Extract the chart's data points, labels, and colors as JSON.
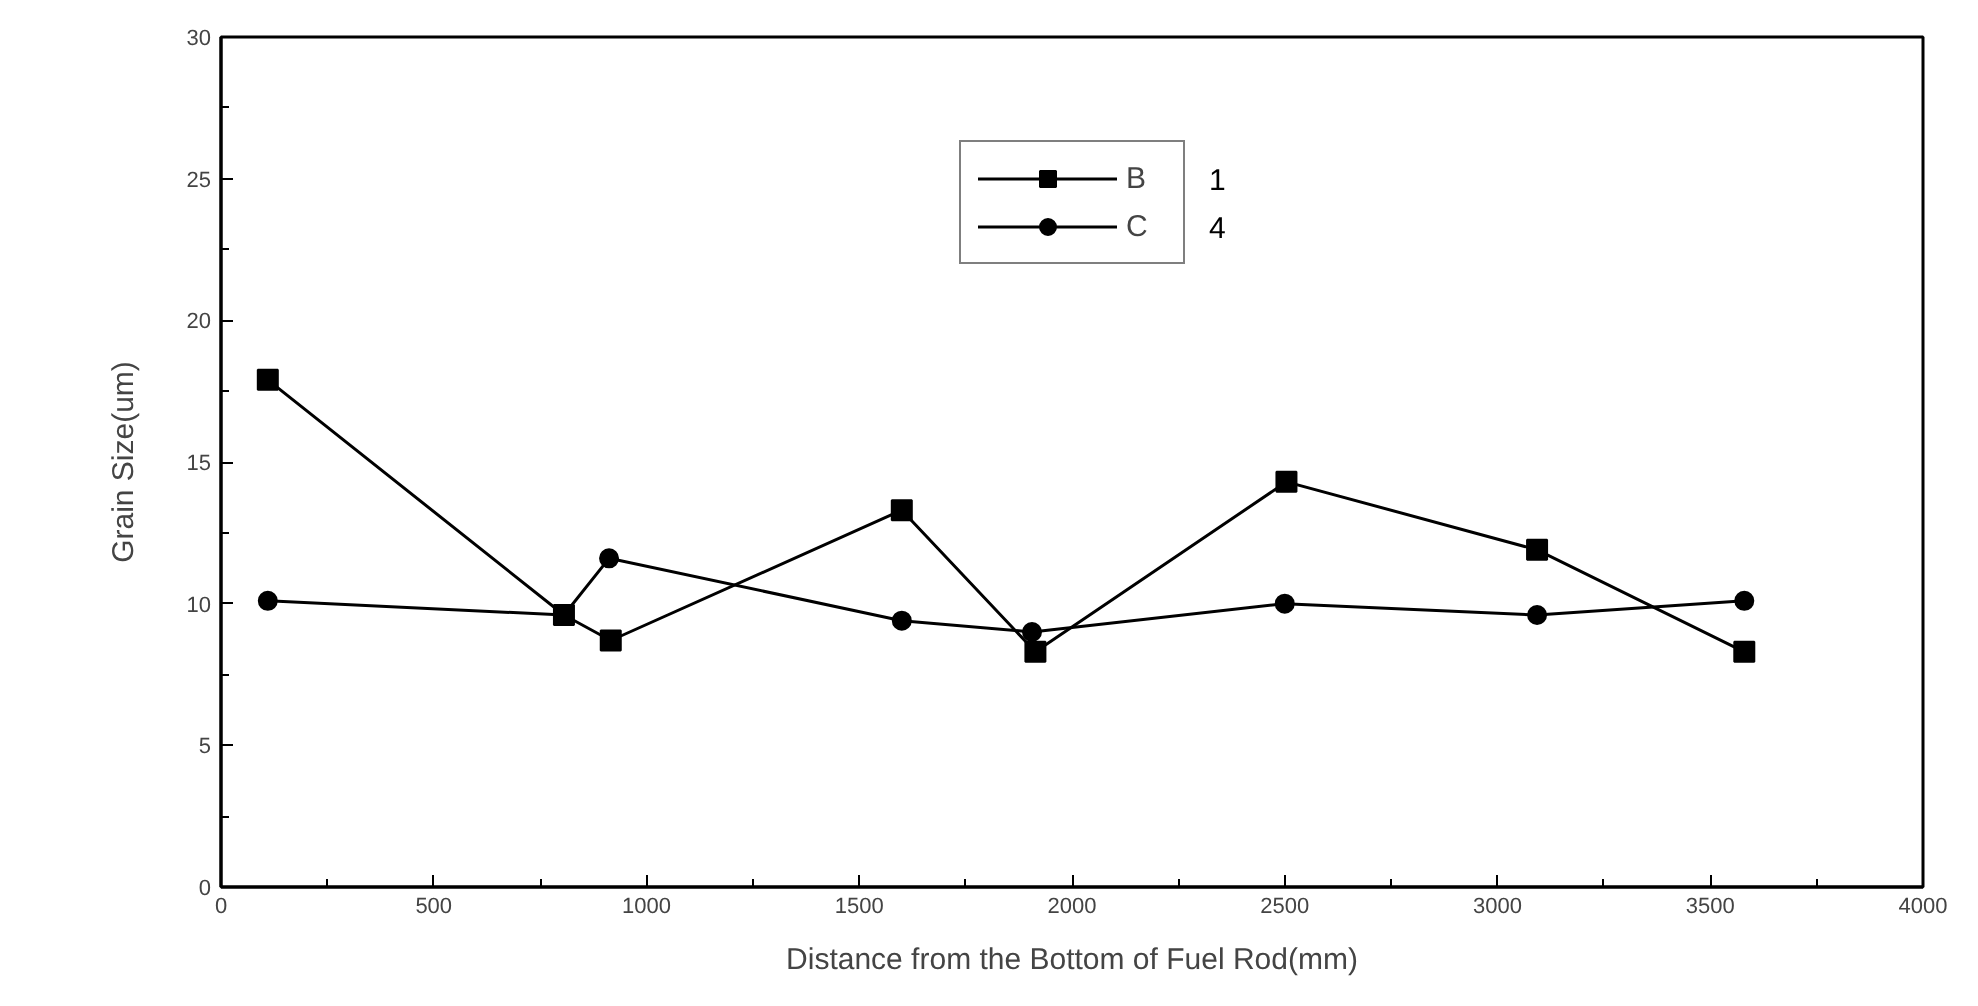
{
  "chart_data": {
    "type": "line",
    "xlabel": "Distance from the Bottom of Fuel Rod(mm)",
    "ylabel": "Grain Size(um)",
    "xlim": [
      0,
      4000
    ],
    "xticks": [
      0,
      500,
      1000,
      1500,
      2000,
      2500,
      3000,
      3500,
      4000
    ],
    "ylim": [
      0,
      30
    ],
    "yticks": [
      0,
      5,
      10,
      15,
      20,
      25,
      30
    ],
    "grid": false,
    "legend": "top",
    "line_style": "solid",
    "annotations": [
      "1",
      "4"
    ],
    "series": [
      {
        "name": "B",
        "color": "#000000",
        "marker": "square",
        "x": [
          110,
          806,
          916,
          1600,
          1914,
          2504,
          3093,
          3580
        ],
        "values": [
          17.9,
          9.6,
          8.7,
          13.3,
          8.3,
          14.3,
          11.9,
          8.3
        ]
      },
      {
        "name": "C",
        "color": "#000000",
        "marker": "circle",
        "x": [
          110,
          806,
          912,
          1600,
          1906,
          2500,
          3093,
          3580
        ],
        "values": [
          10.1,
          9.6,
          11.6,
          9.4,
          9.0,
          10.0,
          9.6,
          10.1
        ]
      }
    ]
  }
}
